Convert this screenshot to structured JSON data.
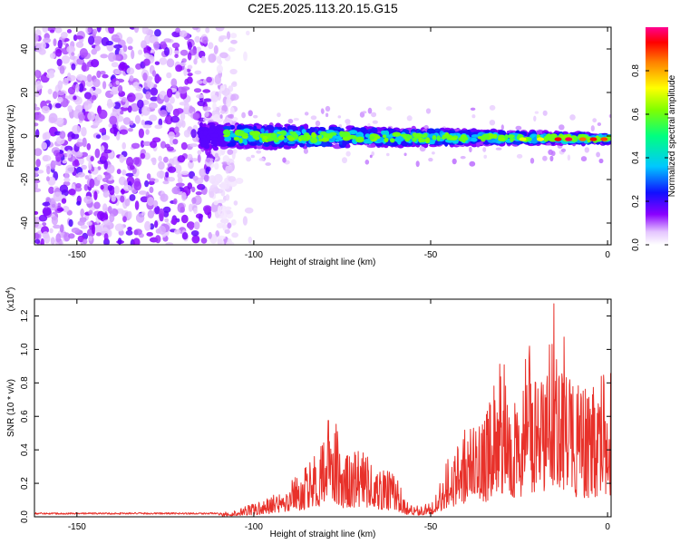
{
  "title": "C2E5.2025.113.20.15.G15",
  "chart_data": [
    {
      "type": "heatmap",
      "xlabel": "Height of straight line (km)",
      "ylabel": "Frequency (Hz)",
      "xlim": [
        -162,
        1
      ],
      "ylim": [
        -50,
        50
      ],
      "x_ticks": [
        -150,
        -100,
        -50,
        0
      ],
      "y_ticks": [
        -40,
        -20,
        0,
        20,
        40
      ],
      "noise_region_x": [
        -162,
        -105
      ],
      "signal_band": {
        "x_start": -115,
        "x_end": 1,
        "center_freq_hz": 0,
        "half_width_hz_start": 6,
        "half_width_hz_end": 2
      },
      "colorbar": {
        "label": "Normalized spectral amplitude",
        "range": [
          0.0,
          1.0
        ],
        "ticks": [
          0.0,
          0.2,
          0.4,
          0.6,
          0.8
        ],
        "colors": [
          "#ffffff",
          "#d9a6ff",
          "#7a00ff",
          "#0000ff",
          "#00ffff",
          "#00ff00",
          "#ffff00",
          "#ff8000",
          "#ff0000",
          "#ff00a0"
        ]
      }
    },
    {
      "type": "line",
      "xlabel": "Height of straight line (km)",
      "ylabel": "SNR (10 * v/v)",
      "y_multiplier_label": "(x10",
      "y_multiplier_exp": "4",
      "xlim": [
        -162,
        1
      ],
      "ylim": [
        0,
        1.3
      ],
      "x_ticks": [
        -150,
        -100,
        -50,
        0
      ],
      "y_ticks": [
        0.0,
        0.2,
        0.4,
        0.6,
        0.8,
        1.0,
        1.2
      ],
      "color": "#e8312a",
      "envelope": {
        "x": [
          -162,
          -110,
          -105,
          -100,
          -95,
          -90,
          -85,
          -80,
          -78,
          -75,
          -70,
          -65,
          -60,
          -57,
          -55,
          -50,
          -45,
          -40,
          -35,
          -30,
          -25,
          -22,
          -20,
          -17,
          -15,
          -12,
          -10,
          -5,
          0,
          1
        ],
        "y": [
          0.02,
          0.02,
          0.04,
          0.08,
          0.12,
          0.2,
          0.3,
          0.45,
          0.7,
          0.35,
          0.4,
          0.3,
          0.25,
          0.1,
          0.06,
          0.08,
          0.35,
          0.55,
          0.55,
          0.95,
          0.7,
          1.1,
          0.75,
          1.05,
          1.3,
          1.05,
          0.8,
          0.75,
          0.9,
          0.85
        ]
      }
    }
  ]
}
